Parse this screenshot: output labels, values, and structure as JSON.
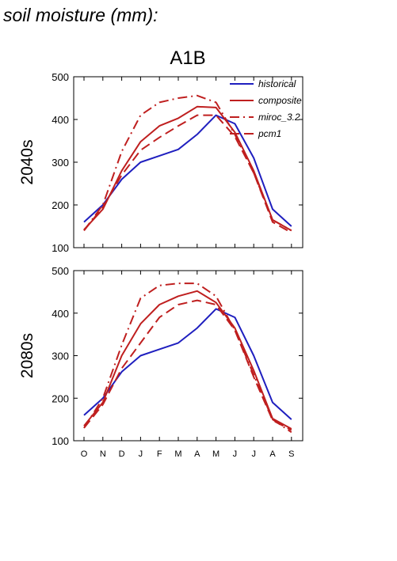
{
  "figure": {
    "title": "soil moisture (mm):",
    "scenario": "A1B"
  },
  "colors": {
    "historical": "#1f1fbf",
    "composite": "#bf1f1f",
    "miroc_3.2": "#bf1f1f",
    "pcm1": "#bf1f1f"
  },
  "chart_data": [
    {
      "type": "line",
      "panel_label": "2040s",
      "categories": [
        "O",
        "N",
        "D",
        "J",
        "F",
        "M",
        "A",
        "M",
        "J",
        "J",
        "A",
        "S"
      ],
      "ylim": [
        100,
        500
      ],
      "yticks": [
        100,
        200,
        300,
        400,
        500
      ],
      "legend_position": "top-right",
      "series": [
        {
          "name": "historical",
          "dash": "solid",
          "values": [
            160,
            200,
            260,
            300,
            315,
            330,
            365,
            410,
            390,
            310,
            190,
            150
          ]
        },
        {
          "name": "composite",
          "dash": "solid",
          "values": [
            142,
            190,
            280,
            348,
            385,
            403,
            430,
            428,
            370,
            280,
            165,
            140
          ]
        },
        {
          "name": "miroc_3.2",
          "dash": "dashdot",
          "values": [
            140,
            200,
            325,
            410,
            440,
            450,
            456,
            440,
            365,
            275,
            165,
            140
          ]
        },
        {
          "name": "pcm1",
          "dash": "dash",
          "values": [
            140,
            195,
            270,
            328,
            358,
            385,
            410,
            410,
            360,
            275,
            160,
            135
          ]
        }
      ]
    },
    {
      "type": "line",
      "panel_label": "2080s",
      "categories": [
        "O",
        "N",
        "D",
        "J",
        "F",
        "M",
        "A",
        "M",
        "J",
        "J",
        "A",
        "S"
      ],
      "ylim": [
        100,
        500
      ],
      "yticks": [
        100,
        200,
        300,
        400,
        500
      ],
      "series": [
        {
          "name": "historical",
          "dash": "solid",
          "values": [
            160,
            200,
            262,
            300,
            315,
            330,
            365,
            410,
            390,
            300,
            190,
            150
          ]
        },
        {
          "name": "composite",
          "dash": "solid",
          "values": [
            135,
            190,
            300,
            375,
            420,
            440,
            452,
            425,
            365,
            265,
            152,
            128
          ]
        },
        {
          "name": "miroc_3.2",
          "dash": "dashdot",
          "values": [
            130,
            200,
            325,
            435,
            465,
            470,
            470,
            440,
            360,
            255,
            150,
            120
          ]
        },
        {
          "name": "pcm1",
          "dash": "dash",
          "values": [
            130,
            185,
            270,
            330,
            390,
            420,
            430,
            420,
            360,
            250,
            148,
            125
          ]
        }
      ]
    }
  ]
}
